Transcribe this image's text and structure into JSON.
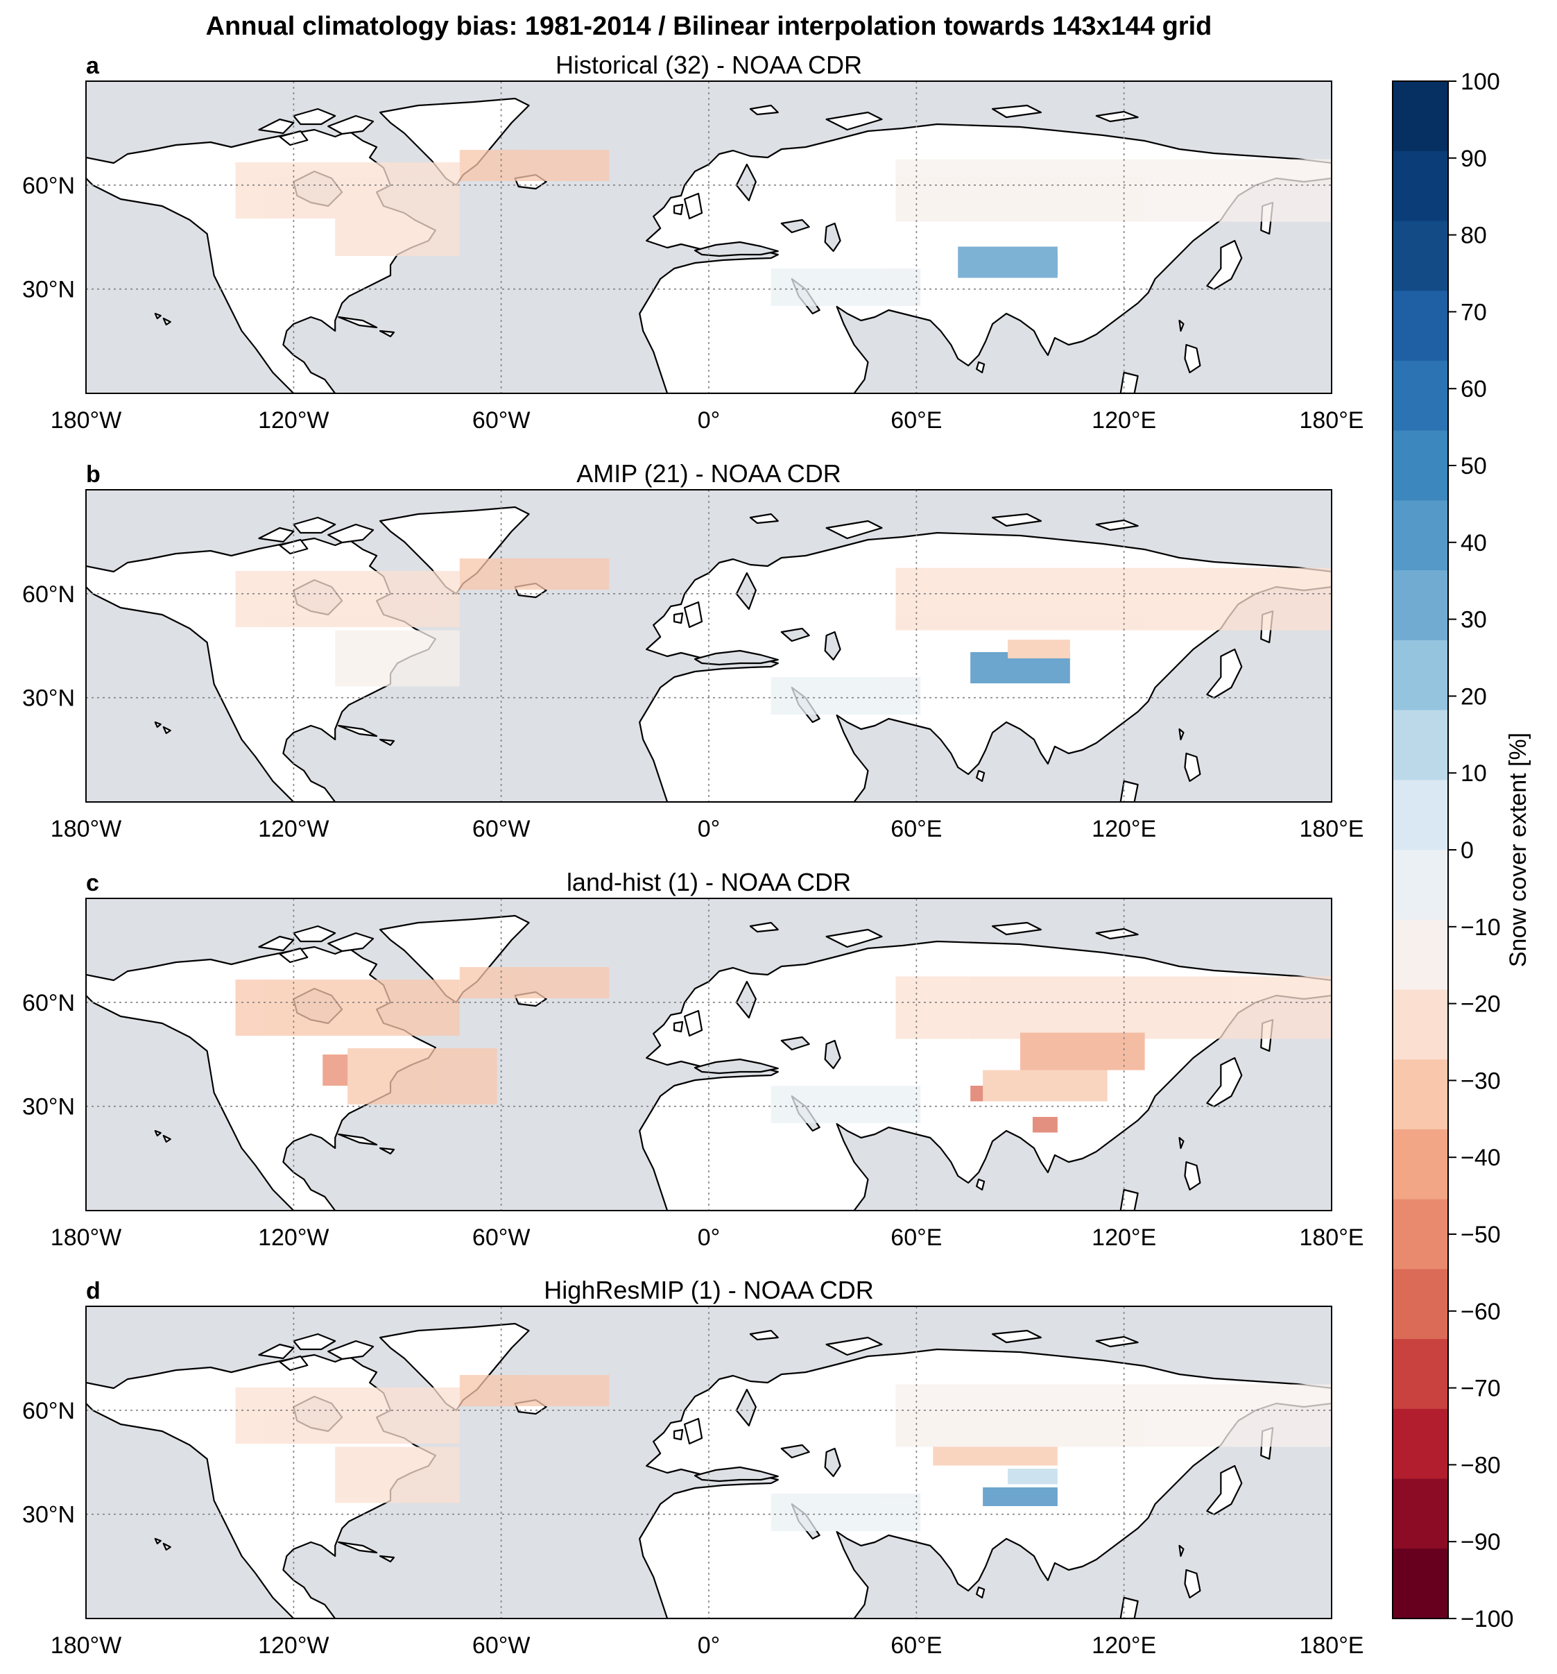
{
  "title": "Annual climatology bias: 1981-2014 / Bilinear interpolation towards 143x144 grid",
  "panels": [
    {
      "letter": "a",
      "title": "Historical (32) - NOAA CDR"
    },
    {
      "letter": "b",
      "title": "AMIP (21) - NOAA CDR"
    },
    {
      "letter": "c",
      "title": "land-hist (1) - NOAA CDR"
    },
    {
      "letter": "d",
      "title": "HighResMIP (1) - NOAA CDR"
    }
  ],
  "x_ticks": [
    "180°W",
    "120°W",
    "60°W",
    "0°",
    "60°E",
    "120°E",
    "180°E"
  ],
  "y_ticks": [
    "60°N",
    "30°N"
  ],
  "colorbar": {
    "label": "Snow cover extent [%]",
    "ticks": [
      "100",
      "90",
      "80",
      "70",
      "60",
      "50",
      "40",
      "30",
      "20",
      "10",
      "0",
      "−10",
      "−20",
      "−30",
      "−40",
      "−50",
      "−60",
      "−70",
      "−80",
      "−90",
      "−100"
    ],
    "colors": [
      "#053061",
      "#0b3d78",
      "#134b87",
      "#1f5fa3",
      "#2b73b2",
      "#3c87bd",
      "#5499c7",
      "#72abd2",
      "#95c4df",
      "#bcd9ea",
      "#d9e8f2",
      "#eaf0f4",
      "#f7f0ec",
      "#fbe0d2",
      "#f8c7ac",
      "#f2a686",
      "#e98a6e",
      "#db6b57",
      "#c9423f",
      "#b21e2e",
      "#8c0c25",
      "#67001f"
    ]
  },
  "colors": {
    "ocean": "#dde0e5",
    "land": "#ffffff",
    "border": "#000000"
  }
}
